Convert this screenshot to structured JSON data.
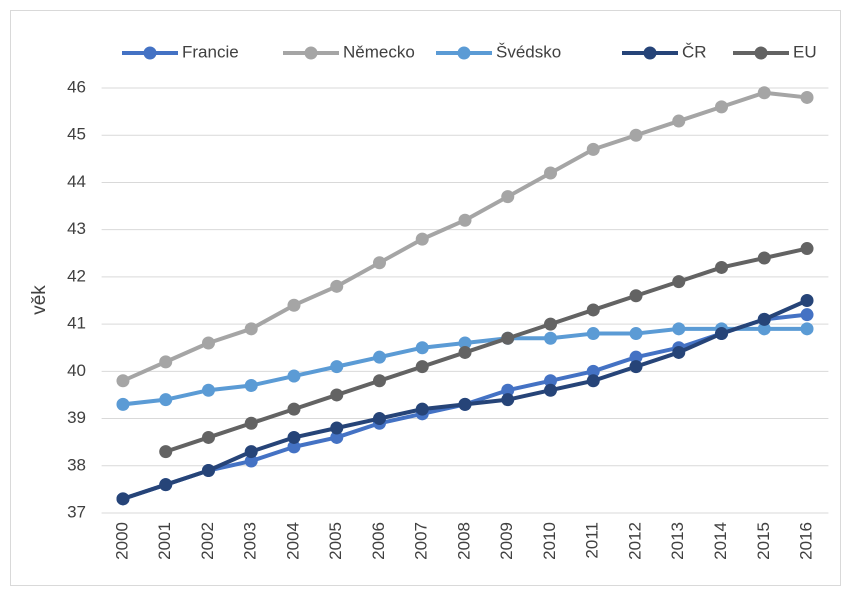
{
  "chart_data": {
    "type": "line",
    "y_label": "věk",
    "categories": [
      "2000",
      "2001",
      "2002",
      "2003",
      "2004",
      "2005",
      "2006",
      "2007",
      "2008",
      "2009",
      "2010",
      "2011",
      "2012",
      "2013",
      "2014",
      "2015",
      "2016"
    ],
    "series": [
      {
        "name": "Francie",
        "color": "#4472c4",
        "values": [
          37.3,
          37.6,
          37.9,
          38.1,
          38.4,
          38.6,
          38.9,
          39.1,
          39.3,
          39.6,
          39.8,
          40.0,
          40.3,
          40.5,
          40.8,
          41.1,
          41.2
        ]
      },
      {
        "name": "Německo",
        "color": "#a5a5a5",
        "values": [
          39.8,
          40.2,
          40.6,
          40.9,
          41.4,
          41.8,
          42.3,
          42.8,
          43.2,
          43.7,
          44.2,
          44.7,
          45.0,
          45.3,
          45.6,
          45.9,
          45.8
        ]
      },
      {
        "name": "Švédsko",
        "color": "#5b9bd5",
        "values": [
          39.3,
          39.4,
          39.6,
          39.7,
          39.9,
          40.1,
          40.3,
          40.5,
          40.6,
          40.7,
          40.7,
          40.8,
          40.8,
          40.9,
          40.9,
          40.9,
          40.9
        ]
      },
      {
        "name": "ČR",
        "color": "#264478",
        "values": [
          37.3,
          37.6,
          37.9,
          38.3,
          38.6,
          38.8,
          39.0,
          39.2,
          39.3,
          39.4,
          39.6,
          39.8,
          40.1,
          40.4,
          40.8,
          41.1,
          41.5
        ]
      },
      {
        "name": "EU",
        "color": "#636363",
        "values": [
          null,
          38.3,
          38.6,
          38.9,
          39.2,
          39.5,
          39.8,
          40.1,
          40.4,
          40.7,
          41.0,
          41.3,
          41.6,
          41.9,
          42.2,
          42.4,
          42.6
        ]
      }
    ],
    "ylim": [
      37,
      46
    ],
    "yticks": [
      37,
      38,
      39,
      40,
      41,
      42,
      43,
      44,
      45,
      46
    ],
    "grid": true,
    "legend": "top"
  }
}
